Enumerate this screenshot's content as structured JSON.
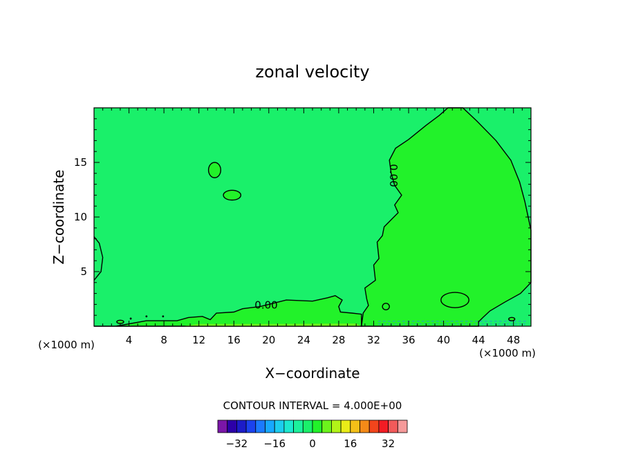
{
  "chart_data": {
    "type": "heatmap",
    "title": "zonal velocity",
    "xlabel": "X−coordinate",
    "ylabel": "Z−coordinate",
    "x_unit": "(×1000 m)",
    "y_unit": "(×1000 m)",
    "xlim": [
      0,
      50
    ],
    "ylim": [
      0,
      20
    ],
    "x_ticks": [
      4,
      8,
      12,
      16,
      20,
      24,
      28,
      32,
      36,
      40,
      44,
      48
    ],
    "y_ticks": [
      5,
      10,
      15
    ],
    "contour_labels": [
      {
        "text": "0.00",
        "x": 19.7,
        "z": 1.9
      },
      {
        "text": "0.00",
        "x": 34.2,
        "z": 13.8
      }
    ],
    "contour_interval_text": "CONTOUR INTERVAL = 4.000E+00",
    "colorbar": {
      "levels": [
        -36,
        -32,
        -28,
        -24,
        -20,
        -16,
        -12,
        -8,
        -4,
        0,
        4,
        8,
        12,
        16,
        20,
        24,
        28,
        32,
        36
      ],
      "colors": [
        "#7b16a8",
        "#2c00a8",
        "#1c1cc8",
        "#1b42ee",
        "#1b7aff",
        "#17a8ff",
        "#1ccdee",
        "#1ce8cf",
        "#1cf09c",
        "#1af06a",
        "#22f22a",
        "#6cf41c",
        "#b2f418",
        "#e9ec18",
        "#f4c018",
        "#f48a18",
        "#f2451c",
        "#f21c24",
        "#f25a5a",
        "#f59a9a"
      ],
      "tick_labels": [
        "−32",
        "−16",
        "0",
        "16",
        "32"
      ],
      "tick_values": [
        -32,
        -16,
        0,
        16,
        32
      ]
    },
    "fill_colors": {
      "background": "#1af06a",
      "positive_region": "#22f22a",
      "surface_band": "#6cf41c"
    }
  }
}
